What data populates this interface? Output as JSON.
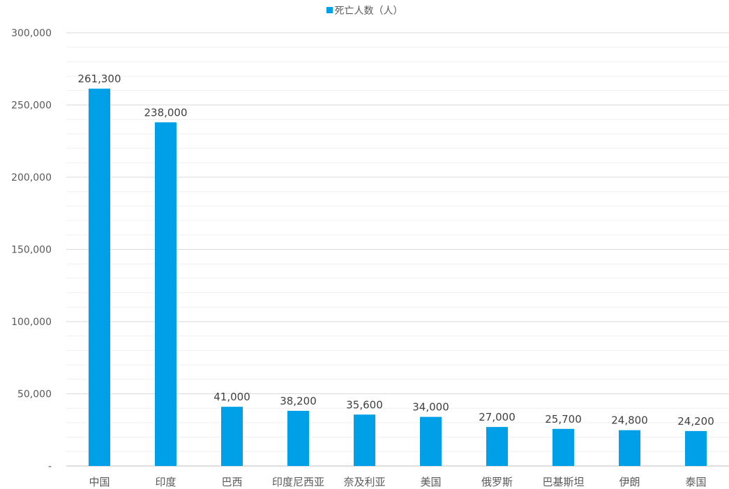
{
  "chart_data": {
    "type": "bar",
    "categories": [
      "中国",
      "印度",
      "巴西",
      "印度尼西亚",
      "奈及利亚",
      "美国",
      "俄罗斯",
      "巴基斯坦",
      "伊朗",
      "泰国"
    ],
    "series": [
      {
        "name": "死亡人数（人）",
        "values": [
          261300,
          238000,
          41000,
          38200,
          35600,
          34000,
          27000,
          25700,
          24800,
          24200
        ],
        "value_labels": [
          "261,300",
          "238,000",
          "41,000",
          "38,200",
          "35,600",
          "34,000",
          "27,000",
          "25,700",
          "24,800",
          "24,200"
        ],
        "color": "#00a0e9"
      }
    ],
    "y_ticks": [
      0,
      50000,
      100000,
      150000,
      200000,
      250000,
      300000
    ],
    "y_tick_labels": [
      "-",
      "50,000",
      "100,000",
      "150,000",
      "200,000",
      "250,000",
      "300,000"
    ],
    "ylim": [
      0,
      300000
    ],
    "title": "",
    "xlabel": "",
    "ylabel": "",
    "grid": true,
    "legend": "top-center",
    "colors": {
      "bar": "#00a0e9",
      "major_grid": "#d9d9d9",
      "minor_grid": "#efefef",
      "text": "#595959"
    }
  }
}
